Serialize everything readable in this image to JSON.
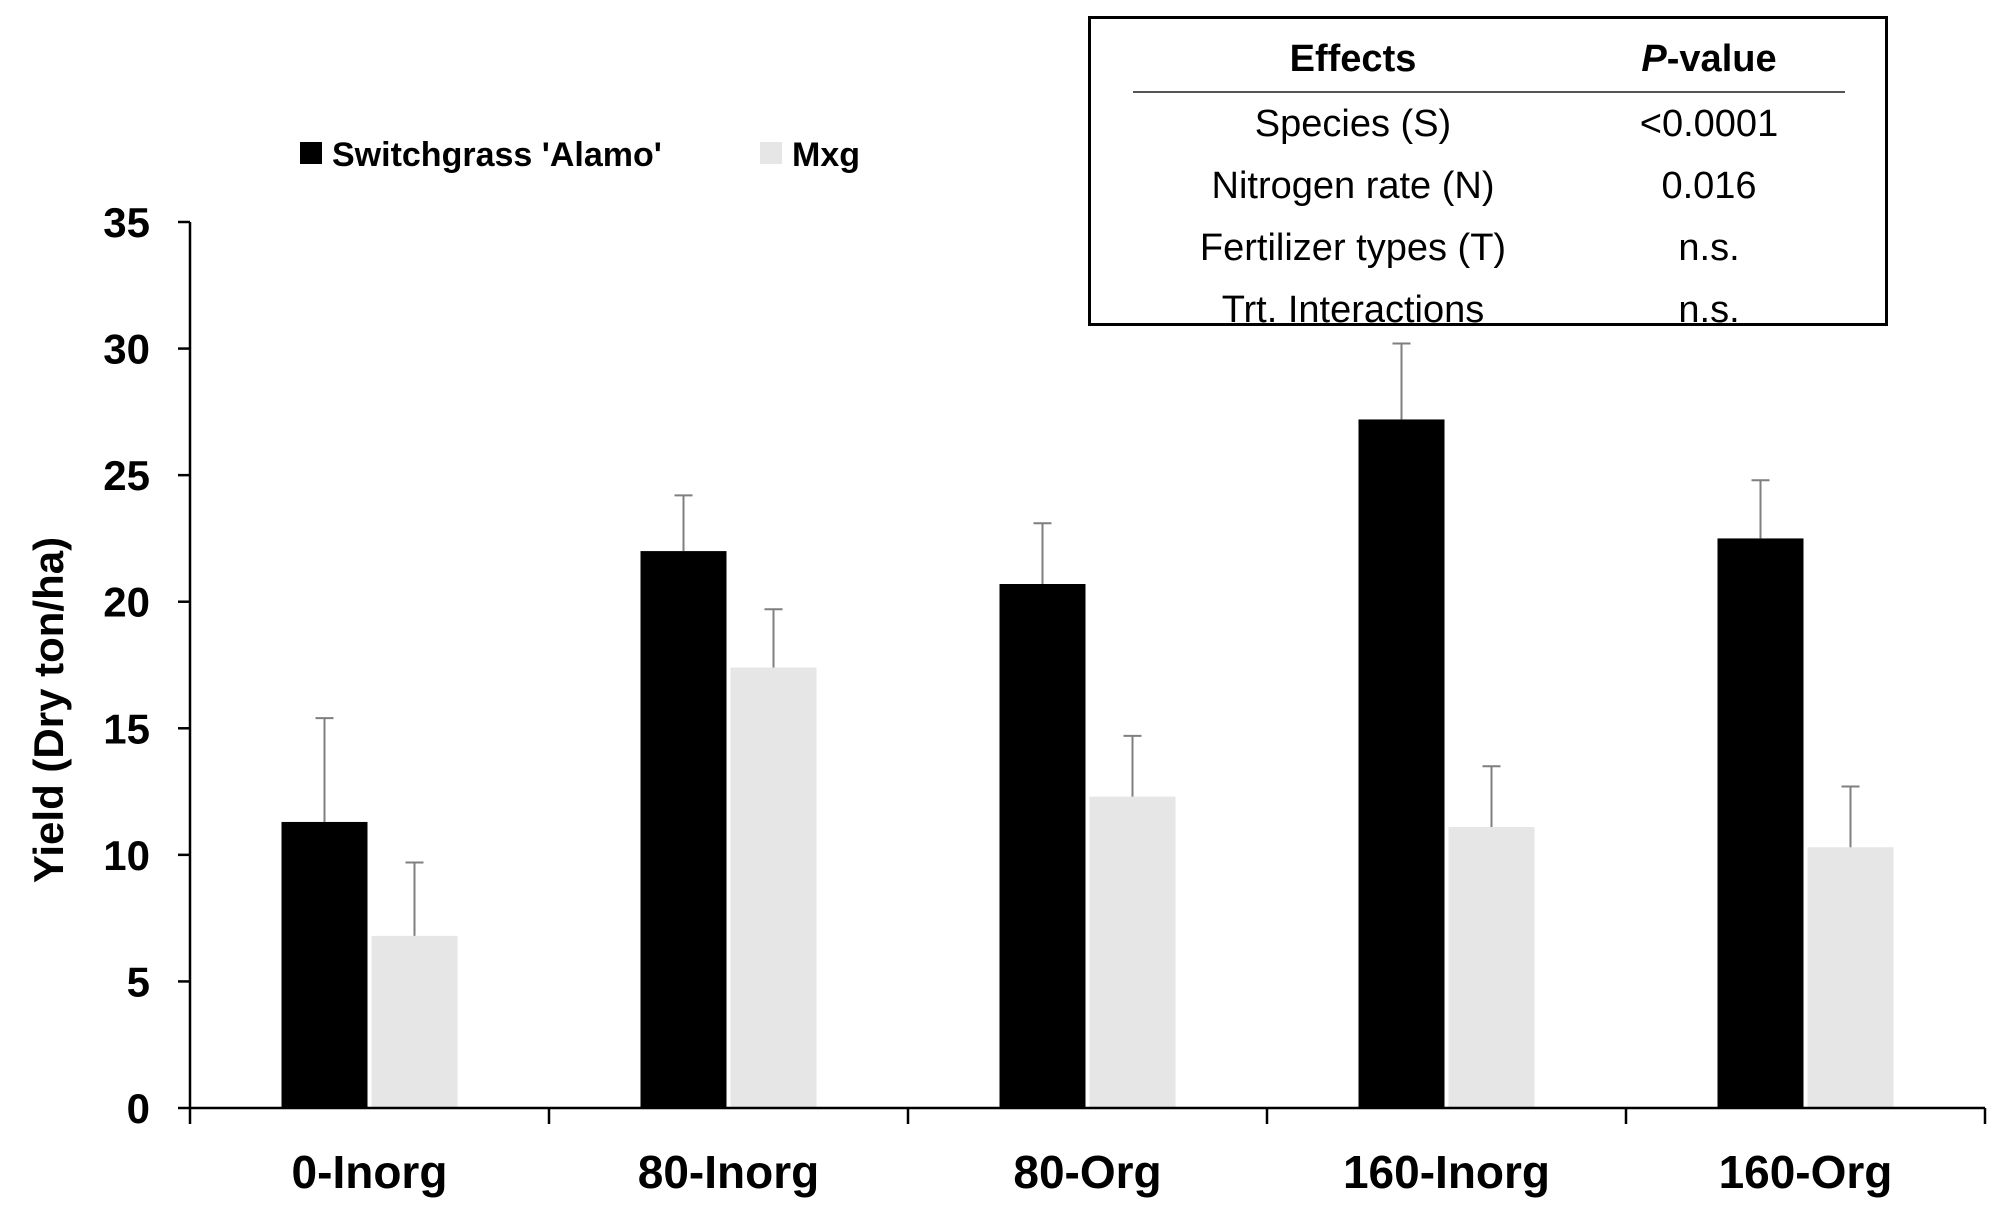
{
  "chart_data": {
    "type": "bar",
    "title": "",
    "xlabel": "",
    "ylabel": "Yield (Dry ton/ha)",
    "ylim": [
      0,
      35
    ],
    "yticks": [
      0,
      5,
      10,
      15,
      20,
      25,
      30,
      35
    ],
    "grid": false,
    "legend_position": "top-left",
    "categories": [
      "0-Inorg",
      "80-Inorg",
      "80-Org",
      "160-Inorg",
      "160-Org"
    ],
    "series": [
      {
        "name": "Switchgrass 'Alamo'",
        "color": "#000000",
        "values": [
          11.3,
          22.0,
          20.7,
          27.2,
          22.5
        ],
        "error": [
          4.1,
          2.2,
          2.4,
          3.0,
          2.3
        ]
      },
      {
        "name": "Mxg",
        "color": "#e6e6e6",
        "values": [
          6.8,
          17.4,
          12.3,
          11.1,
          10.3
        ],
        "error": [
          2.9,
          2.3,
          2.4,
          2.4,
          2.4
        ]
      }
    ]
  },
  "stats_table": {
    "header_effect": "Effects",
    "header_pvalue_italic": "P",
    "header_pvalue_rest": "-value",
    "rows": [
      {
        "effect": "Species (S)",
        "pvalue": "<0.0001"
      },
      {
        "effect": "Nitrogen rate (N)",
        "pvalue": "0.016"
      },
      {
        "effect": "Fertilizer types (T)",
        "pvalue": "n.s."
      },
      {
        "effect": "Trt. Interactions",
        "pvalue": "n.s."
      }
    ]
  }
}
